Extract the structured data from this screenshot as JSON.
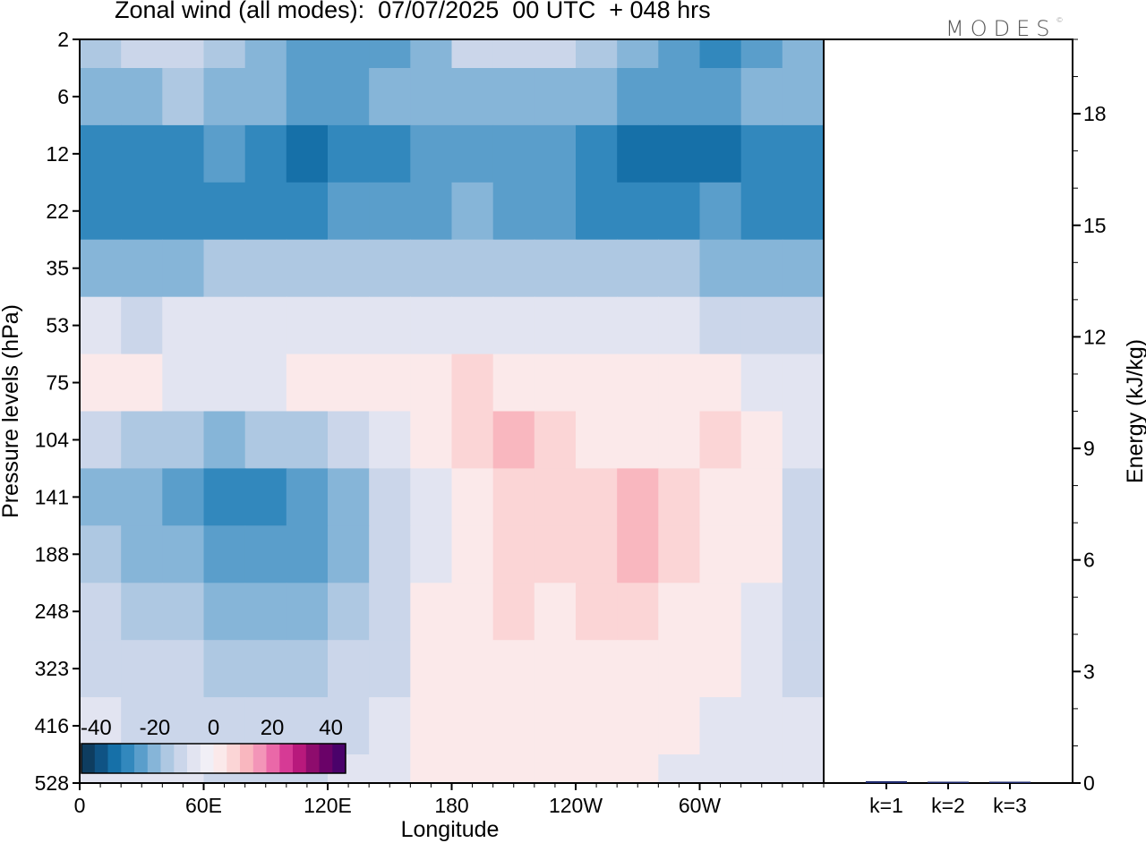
{
  "title": "Zonal wind (all modes):  07/07/2025  00 UTC  + 048 hrs",
  "logo": "MODES",
  "logo_mark": "©",
  "colors": {
    "neg": [
      "#0e3d60",
      "#0f5384",
      "#1670a8",
      "#3288bd",
      "#5a9ecb",
      "#86b5d8",
      "#aec8e2",
      "#cbd6ea",
      "#e2e4f1",
      "#f1eff6"
    ],
    "pos": [
      "#fbe9ea",
      "#fbd5d6",
      "#f9b7bf",
      "#f395b8",
      "#ea68a8",
      "#d63a95",
      "#b8197c",
      "#8e0c6d",
      "#6a0268",
      "#4a026a"
    ],
    "bar": "#1e2a6e"
  },
  "chart_data": [
    {
      "type": "heatmap",
      "title": "Zonal wind (all modes):  07/07/2025  00 UTC  + 048 hrs",
      "xlabel": "Longitude",
      "ylabel": "Pressure levels (hPa)",
      "x_ticks": [
        "0",
        "60E",
        "120E",
        "180",
        "120W",
        "60W"
      ],
      "x_tick_values": [
        0,
        60,
        120,
        180,
        240,
        300
      ],
      "xlim": [
        0,
        360
      ],
      "y_ticks": [
        "2",
        "6",
        "12",
        "22",
        "35",
        "53",
        "75",
        "104",
        "141",
        "188",
        "248",
        "323",
        "416",
        "528"
      ],
      "colorbar": {
        "ticks": [
          "-40",
          "-20",
          "0",
          "20",
          "40"
        ],
        "tick_values": [
          -40,
          -20,
          0,
          20,
          40
        ],
        "range": [
          -45,
          45
        ],
        "step": 5
      },
      "levels": [
        {
          "p": "2",
          "u": [
            -12,
            -8,
            -6,
            -14,
            -18,
            -22,
            -24,
            -22,
            -16,
            -10,
            -6,
            -8,
            -14,
            -20,
            -24,
            -26,
            -22,
            -18
          ]
        },
        {
          "p": "6",
          "u": [
            -18,
            -16,
            -14,
            -16,
            -20,
            -22,
            -22,
            -20,
            -18,
            -16,
            -16,
            -18,
            -20,
            -22,
            -24,
            -22,
            -20,
            -18
          ]
        },
        {
          "p": "12",
          "u": [
            -28,
            -30,
            -26,
            -24,
            -30,
            -32,
            -28,
            -26,
            -24,
            -22,
            -22,
            -24,
            -28,
            -32,
            -34,
            -32,
            -30,
            -28
          ]
        },
        {
          "p": "22",
          "u": [
            -26,
            -28,
            -26,
            -26,
            -26,
            -26,
            -24,
            -22,
            -22,
            -20,
            -22,
            -24,
            -26,
            -26,
            -26,
            -24,
            -26,
            -26
          ]
        },
        {
          "p": "35",
          "u": [
            -16,
            -18,
            -16,
            -14,
            -14,
            -14,
            -14,
            -14,
            -14,
            -14,
            -14,
            -14,
            -14,
            -14,
            -14,
            -16,
            -16,
            -16
          ]
        },
        {
          "p": "53",
          "u": [
            -4,
            -6,
            -4,
            -2,
            -2,
            -2,
            -2,
            -2,
            -2,
            -2,
            -2,
            -2,
            -2,
            -4,
            -4,
            -6,
            -6,
            -6
          ]
        },
        {
          "p": "75",
          "u": [
            2,
            0,
            -2,
            -4,
            -2,
            0,
            2,
            2,
            4,
            6,
            4,
            2,
            2,
            0,
            2,
            0,
            -2,
            -2
          ]
        },
        {
          "p": "104",
          "u": [
            -10,
            -12,
            -14,
            -18,
            -14,
            -12,
            -10,
            -4,
            0,
            6,
            10,
            6,
            4,
            2,
            4,
            6,
            2,
            -4
          ]
        },
        {
          "p": "141",
          "u": [
            -16,
            -20,
            -22,
            -28,
            -26,
            -24,
            -18,
            -10,
            -2,
            4,
            8,
            6,
            8,
            12,
            6,
            4,
            0,
            -8
          ]
        },
        {
          "p": "188",
          "u": [
            -14,
            -16,
            -20,
            -24,
            -24,
            -22,
            -16,
            -10,
            -2,
            4,
            8,
            6,
            8,
            10,
            6,
            4,
            0,
            -8
          ]
        },
        {
          "p": "248",
          "u": [
            -10,
            -12,
            -14,
            -16,
            -18,
            -16,
            -14,
            -8,
            0,
            4,
            6,
            4,
            6,
            6,
            4,
            2,
            -2,
            -8
          ]
        },
        {
          "p": "323",
          "u": [
            -6,
            -8,
            -10,
            -12,
            -14,
            -12,
            -10,
            -6,
            0,
            2,
            4,
            2,
            4,
            4,
            2,
            0,
            -2,
            -6
          ]
        },
        {
          "p": "416",
          "u": [
            -4,
            -6,
            -6,
            -8,
            -10,
            -8,
            -6,
            -4,
            0,
            2,
            2,
            2,
            2,
            2,
            0,
            -2,
            -2,
            -4
          ]
        },
        {
          "p": "528",
          "u": [
            -2,
            -4,
            -4,
            -6,
            -6,
            -6,
            -4,
            -2,
            0,
            0,
            2,
            0,
            0,
            0,
            -2,
            -2,
            -2,
            -2
          ]
        }
      ]
    },
    {
      "type": "bar",
      "categories": [
        "k=1",
        "k=2",
        "k=3"
      ],
      "values": [
        0.05,
        0.02,
        0.01
      ],
      "ylabel": "Energy (kJ/kg)",
      "y_ticks": [
        "0",
        "3",
        "6",
        "9",
        "12",
        "15",
        "18"
      ],
      "y_tick_values": [
        0,
        3,
        6,
        9,
        12,
        15,
        18
      ],
      "ylim": [
        0,
        20
      ]
    }
  ]
}
